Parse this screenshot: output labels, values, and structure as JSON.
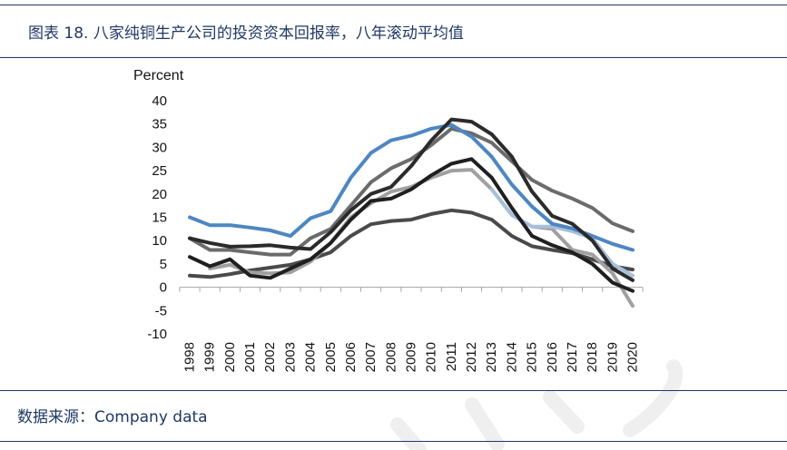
{
  "theme": {
    "rule_color": "#1f3864",
    "text_color": "#1f3864"
  },
  "footer": {
    "source": "数据来源：Company data"
  },
  "chart_data": {
    "type": "line",
    "title": "图表 18. 八家纯铜生产公司的投资资本回报率，八年滚动平均值",
    "xlabel": "",
    "ylabel": "Percent",
    "ylim": [
      -10,
      40
    ],
    "yticks": [
      40,
      35,
      30,
      25,
      20,
      15,
      10,
      5,
      0,
      -5,
      -10
    ],
    "x": [
      "1998",
      "1999",
      "2000",
      "2001",
      "2002",
      "2003",
      "2004",
      "2005",
      "2006",
      "2007",
      "2008",
      "2009",
      "2010",
      "2011",
      "2012",
      "2013",
      "2014",
      "2015",
      "2016",
      "2017",
      "2018",
      "2019",
      "2020"
    ],
    "grid": false,
    "legend": "none",
    "series": [
      {
        "color": "#4a4a4a",
        "values": [
          2.5,
          2.2,
          2.8,
          3.6,
          4.2,
          4.8,
          6.0,
          7.5,
          11.0,
          13.5,
          14.2,
          14.5,
          15.7,
          16.5,
          16.0,
          14.5,
          11.0,
          8.8,
          8.0,
          7.3,
          6.0,
          4.5,
          3.8
        ]
      },
      {
        "color": "#a0a0a0",
        "values": [
          null,
          4.0,
          4.8,
          3.2,
          3.0,
          3.2,
          5.5,
          9.5,
          15.0,
          18.0,
          20.5,
          21.5,
          23.5,
          25.0,
          25.2,
          21.0,
          15.5,
          13.0,
          12.5,
          8.0,
          7.0,
          3.0,
          -4.0
        ]
      },
      {
        "color": "#a8bfdb",
        "values": [
          null,
          null,
          null,
          null,
          null,
          null,
          null,
          null,
          null,
          null,
          null,
          null,
          null,
          null,
          null,
          21.0,
          15.5,
          13.0,
          13.0,
          12.0,
          10.5,
          5.0,
          2.5
        ]
      },
      {
        "color": "#6b6b6b",
        "values": [
          10.5,
          8.0,
          8.0,
          7.5,
          7.0,
          7.0,
          10.5,
          12.5,
          17.5,
          22.5,
          25.5,
          27.5,
          30.5,
          34.0,
          33.0,
          31.0,
          27.0,
          23.0,
          20.7,
          19.0,
          17.0,
          13.7,
          12.0
        ]
      },
      {
        "color": "#4e87c1",
        "values": [
          15.0,
          13.3,
          13.3,
          12.8,
          12.2,
          11.0,
          14.8,
          16.3,
          23.5,
          28.8,
          31.5,
          32.5,
          34.0,
          34.8,
          32.3,
          28.0,
          22.0,
          17.3,
          13.6,
          12.6,
          11.0,
          9.3,
          8.0
        ]
      },
      {
        "color": "#1f1f1f",
        "values": [
          6.5,
          4.5,
          6.0,
          2.5,
          2.0,
          4.0,
          6.0,
          9.5,
          14.5,
          18.5,
          19.0,
          21.0,
          24.0,
          26.5,
          27.5,
          23.5,
          17.0,
          11.0,
          9.0,
          7.5,
          5.0,
          1.0,
          -0.8
        ]
      },
      {
        "color": "#2b2b2b",
        "values": [
          10.5,
          9.5,
          8.7,
          8.8,
          9.0,
          8.5,
          8.2,
          11.8,
          16.5,
          20.0,
          21.5,
          26.0,
          31.5,
          36.0,
          35.5,
          32.8,
          28.0,
          20.5,
          15.3,
          13.6,
          10.0,
          4.0,
          1.5
        ]
      }
    ]
  }
}
